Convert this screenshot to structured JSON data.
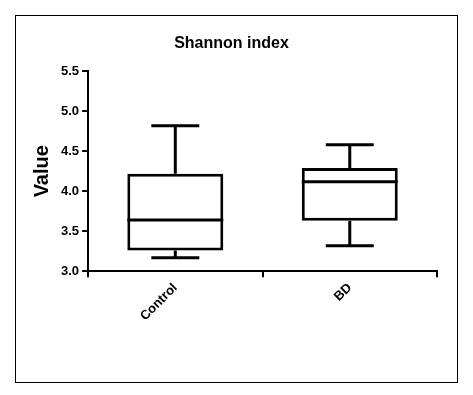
{
  "chart_data": {
    "type": "box",
    "title": "Shannon index",
    "y_label": "Value",
    "categories": [
      "Control",
      "BD"
    ],
    "values": [
      {
        "min": 3.17,
        "q1": 3.26,
        "median": 3.64,
        "q3": 4.22,
        "max": 4.82
      },
      {
        "min": 3.32,
        "q1": 3.63,
        "median": 4.12,
        "q3": 4.29,
        "max": 4.58
      }
    ],
    "color": "#000000",
    "ylim": [
      3,
      5.5
    ],
    "yticks": [
      {
        "value": 3,
        "label": "3.0"
      },
      3.5,
      {
        "value": 4,
        "label": "4.0"
      },
      4.5,
      {
        "value": 5,
        "label": "5.0"
      },
      5.5
    ],
    "grid": false
  }
}
